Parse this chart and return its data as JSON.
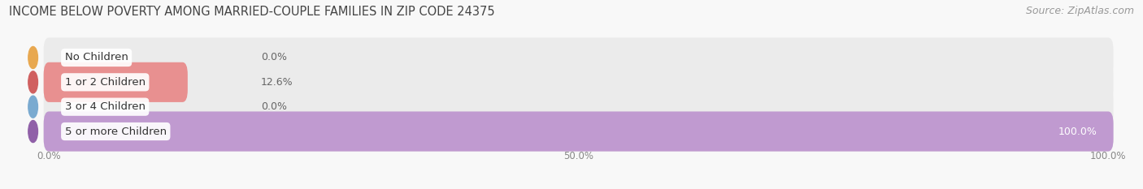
{
  "title": "INCOME BELOW POVERTY AMONG MARRIED-COUPLE FAMILIES IN ZIP CODE 24375",
  "source": "Source: ZipAtlas.com",
  "categories": [
    "No Children",
    "1 or 2 Children",
    "3 or 4 Children",
    "5 or more Children"
  ],
  "values": [
    0.0,
    12.6,
    0.0,
    100.0
  ],
  "bar_colors": [
    "#f5c08a",
    "#e89090",
    "#a8c4e8",
    "#c09ad0"
  ],
  "bar_bg_color": "#ebebeb",
  "label_accent_colors": [
    "#e8a850",
    "#d06060",
    "#7aaad0",
    "#9060a8"
  ],
  "xlim": [
    0,
    100
  ],
  "xtick_labels": [
    "0.0%",
    "50.0%",
    "100.0%"
  ],
  "xtick_values": [
    0,
    50,
    100
  ],
  "title_fontsize": 10.5,
  "source_fontsize": 9,
  "bar_height": 0.62,
  "background_color": "#f8f8f8",
  "plot_bg_color": "#f8f8f8"
}
